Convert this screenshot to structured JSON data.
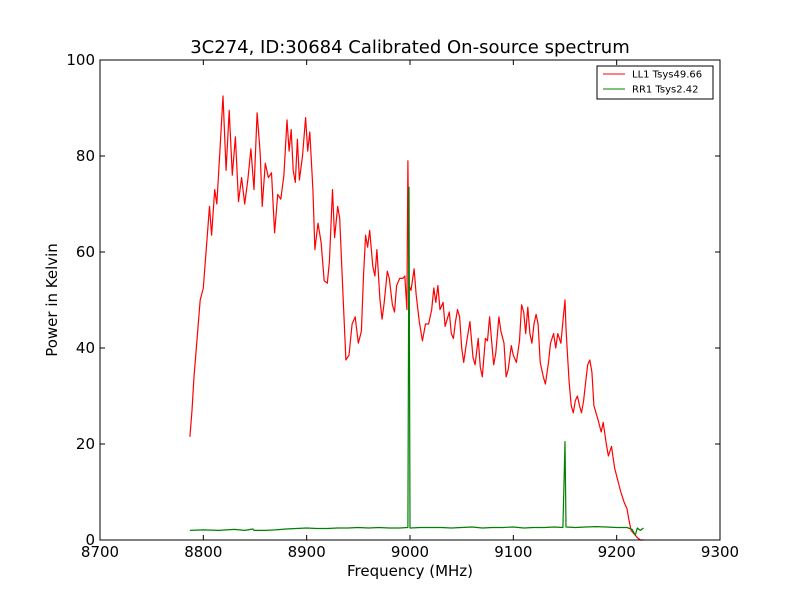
{
  "chart_data": {
    "type": "line",
    "title": "3C274, ID:30684 Calibrated On-source spectrum",
    "xlabel": "Frequency (MHz)",
    "ylabel": "Power in Kelvin",
    "xlim": [
      8700,
      9300
    ],
    "ylim": [
      0,
      100
    ],
    "xticks": [
      "8700",
      "8800",
      "8900",
      "9000",
      "9100",
      "9200",
      "9300"
    ],
    "yticks": [
      "0",
      "20",
      "40",
      "60",
      "80",
      "100"
    ],
    "grid": false,
    "legend_position": "top-right",
    "series": [
      {
        "name": "LL1 Tsys49.66",
        "color": "#ff0000",
        "points": [
          [
            8787,
            21.5
          ],
          [
            8789,
            27
          ],
          [
            8791,
            34
          ],
          [
            8794,
            42
          ],
          [
            8797,
            50
          ],
          [
            8800,
            52.5
          ],
          [
            8803,
            61
          ],
          [
            8806,
            69.5
          ],
          [
            8808,
            63.5
          ],
          [
            8811,
            73
          ],
          [
            8813,
            70
          ],
          [
            8816,
            81
          ],
          [
            8819,
            92.5
          ],
          [
            8822,
            77
          ],
          [
            8825,
            89.5
          ],
          [
            8828,
            76
          ],
          [
            8831,
            84
          ],
          [
            8834,
            70.5
          ],
          [
            8837,
            75.5
          ],
          [
            8840,
            70
          ],
          [
            8843,
            75
          ],
          [
            8846,
            81.5
          ],
          [
            8849,
            73
          ],
          [
            8852,
            89
          ],
          [
            8855,
            80.5
          ],
          [
            8857,
            69.5
          ],
          [
            8860,
            78.5
          ],
          [
            8863,
            75.5
          ],
          [
            8866,
            76.5
          ],
          [
            8869,
            64
          ],
          [
            8872,
            72
          ],
          [
            8875,
            71
          ],
          [
            8878,
            76
          ],
          [
            8881,
            87.5
          ],
          [
            8883,
            81
          ],
          [
            8885,
            85.5
          ],
          [
            8887,
            77
          ],
          [
            8889,
            74.5
          ],
          [
            8891,
            83.5
          ],
          [
            8893,
            75
          ],
          [
            8896,
            80
          ],
          [
            8899,
            88
          ],
          [
            8901,
            81
          ],
          [
            8903,
            85
          ],
          [
            8906,
            73
          ],
          [
            8908,
            60.5
          ],
          [
            8911,
            66
          ],
          [
            8914,
            62
          ],
          [
            8917,
            54
          ],
          [
            8920,
            53.5
          ],
          [
            8922,
            58
          ],
          [
            8925,
            73
          ],
          [
            8927,
            63
          ],
          [
            8930,
            69.5
          ],
          [
            8932,
            67
          ],
          [
            8935,
            52
          ],
          [
            8938,
            37.5
          ],
          [
            8941,
            38.5
          ],
          [
            8944,
            45
          ],
          [
            8947,
            46.5
          ],
          [
            8950,
            41
          ],
          [
            8953,
            43.5
          ],
          [
            8955,
            55
          ],
          [
            8957,
            63.5
          ],
          [
            8959,
            61
          ],
          [
            8961,
            64.5
          ],
          [
            8964,
            57
          ],
          [
            8966,
            55
          ],
          [
            8968,
            60.5
          ],
          [
            8971,
            50
          ],
          [
            8973,
            46
          ],
          [
            8975,
            49.5
          ],
          [
            8978,
            56
          ],
          [
            8980,
            54.5
          ],
          [
            8983,
            49
          ],
          [
            8985,
            47.5
          ],
          [
            8987,
            53
          ],
          [
            8990,
            54.5
          ],
          [
            8993,
            54.5
          ],
          [
            8995,
            55
          ],
          [
            8997,
            48
          ],
          [
            8998,
            79
          ],
          [
            8999,
            53
          ],
          [
            9001,
            52
          ],
          [
            9004,
            56.5
          ],
          [
            9006,
            51
          ],
          [
            9009,
            45.5
          ],
          [
            9012,
            41.5
          ],
          [
            9015,
            45
          ],
          [
            9018,
            45
          ],
          [
            9021,
            48
          ],
          [
            9023,
            52.5
          ],
          [
            9025,
            49.5
          ],
          [
            9027,
            53
          ],
          [
            9029,
            48
          ],
          [
            9032,
            49.5
          ],
          [
            9034,
            44.5
          ],
          [
            9036,
            46
          ],
          [
            9038,
            47.5
          ],
          [
            9040,
            43
          ],
          [
            9042,
            42
          ],
          [
            9044,
            45.5
          ],
          [
            9046,
            48
          ],
          [
            9048,
            46.5
          ],
          [
            9050,
            40
          ],
          [
            9052,
            37
          ],
          [
            9055,
            41.5
          ],
          [
            9058,
            45.5
          ],
          [
            9061,
            38
          ],
          [
            9063,
            36.5
          ],
          [
            9066,
            42
          ],
          [
            9068,
            36
          ],
          [
            9070,
            34
          ],
          [
            9073,
            42
          ],
          [
            9075,
            41.5
          ],
          [
            9077,
            46.5
          ],
          [
            9079,
            41.5
          ],
          [
            9081,
            36.5
          ],
          [
            9083,
            39
          ],
          [
            9086,
            46.5
          ],
          [
            9088,
            43.5
          ],
          [
            9091,
            41
          ],
          [
            9093,
            34
          ],
          [
            9095,
            35.5
          ],
          [
            9098,
            40.5
          ],
          [
            9100,
            38.5
          ],
          [
            9103,
            37
          ],
          [
            9106,
            41.5
          ],
          [
            9108,
            49
          ],
          [
            9110,
            47.5
          ],
          [
            9112,
            43
          ],
          [
            9114,
            48.5
          ],
          [
            9116,
            43
          ],
          [
            9118,
            41
          ],
          [
            9120,
            45
          ],
          [
            9122,
            47
          ],
          [
            9124,
            45
          ],
          [
            9126,
            37
          ],
          [
            9129,
            34
          ],
          [
            9131,
            32.5
          ],
          [
            9134,
            37
          ],
          [
            9136,
            41
          ],
          [
            9139,
            43
          ],
          [
            9141,
            40
          ],
          [
            9143,
            43
          ],
          [
            9146,
            41
          ],
          [
            9148,
            45.5
          ],
          [
            9150,
            50
          ],
          [
            9151,
            44
          ],
          [
            9152,
            40
          ],
          [
            9154,
            33
          ],
          [
            9156,
            28
          ],
          [
            9158,
            26.5
          ],
          [
            9160,
            29
          ],
          [
            9162,
            30
          ],
          [
            9164,
            28
          ],
          [
            9166,
            26.5
          ],
          [
            9168,
            29
          ],
          [
            9170,
            33
          ],
          [
            9172,
            36.5
          ],
          [
            9174,
            37.5
          ],
          [
            9176,
            35
          ],
          [
            9178,
            28
          ],
          [
            9180,
            26.5
          ],
          [
            9182,
            25
          ],
          [
            9185,
            22.5
          ],
          [
            9187,
            24.5
          ],
          [
            9190,
            20
          ],
          [
            9192,
            17.5
          ],
          [
            9195,
            19.5
          ],
          [
            9198,
            15
          ],
          [
            9201,
            12.5
          ],
          [
            9204,
            10
          ],
          [
            9207,
            8
          ],
          [
            9210,
            6.5
          ],
          [
            9212,
            4
          ],
          [
            9214,
            2
          ],
          [
            9216,
            1.5
          ],
          [
            9218,
            1
          ],
          [
            9220,
            0.5
          ],
          [
            9223,
            0
          ],
          [
            9226,
            0
          ]
        ]
      },
      {
        "name": "RR1 Tsys2.42",
        "color": "#008000",
        "points": [
          [
            8787,
            2
          ],
          [
            8800,
            2.1
          ],
          [
            8815,
            2
          ],
          [
            8830,
            2.2
          ],
          [
            8840,
            2
          ],
          [
            8848,
            2.3
          ],
          [
            8849,
            2
          ],
          [
            8860,
            2
          ],
          [
            8870,
            2.1
          ],
          [
            8880,
            2.3
          ],
          [
            8890,
            2.4
          ],
          [
            8900,
            2.5
          ],
          [
            8910,
            2.4
          ],
          [
            8920,
            2.4
          ],
          [
            8930,
            2.5
          ],
          [
            8940,
            2.5
          ],
          [
            8950,
            2.6
          ],
          [
            8960,
            2.5
          ],
          [
            8970,
            2.6
          ],
          [
            8980,
            2.5
          ],
          [
            8990,
            2.5
          ],
          [
            8998,
            2.6
          ],
          [
            8999,
            73.5
          ],
          [
            9000,
            2.5
          ],
          [
            9010,
            2.6
          ],
          [
            9020,
            2.6
          ],
          [
            9030,
            2.6
          ],
          [
            9040,
            2.5
          ],
          [
            9050,
            2.6
          ],
          [
            9060,
            2.7
          ],
          [
            9070,
            2.5
          ],
          [
            9080,
            2.6
          ],
          [
            9090,
            2.6
          ],
          [
            9100,
            2.7
          ],
          [
            9110,
            2.5
          ],
          [
            9120,
            2.6
          ],
          [
            9130,
            2.6
          ],
          [
            9140,
            2.7
          ],
          [
            9148,
            2.6
          ],
          [
            9150,
            20.5
          ],
          [
            9151,
            2.7
          ],
          [
            9160,
            2.6
          ],
          [
            9170,
            2.7
          ],
          [
            9180,
            2.8
          ],
          [
            9190,
            2.7
          ],
          [
            9200,
            2.6
          ],
          [
            9210,
            2.6
          ],
          [
            9215,
            2.2
          ],
          [
            9218,
            1
          ],
          [
            9220,
            2.5
          ],
          [
            9223,
            2
          ],
          [
            9226,
            2.5
          ]
        ]
      }
    ]
  }
}
